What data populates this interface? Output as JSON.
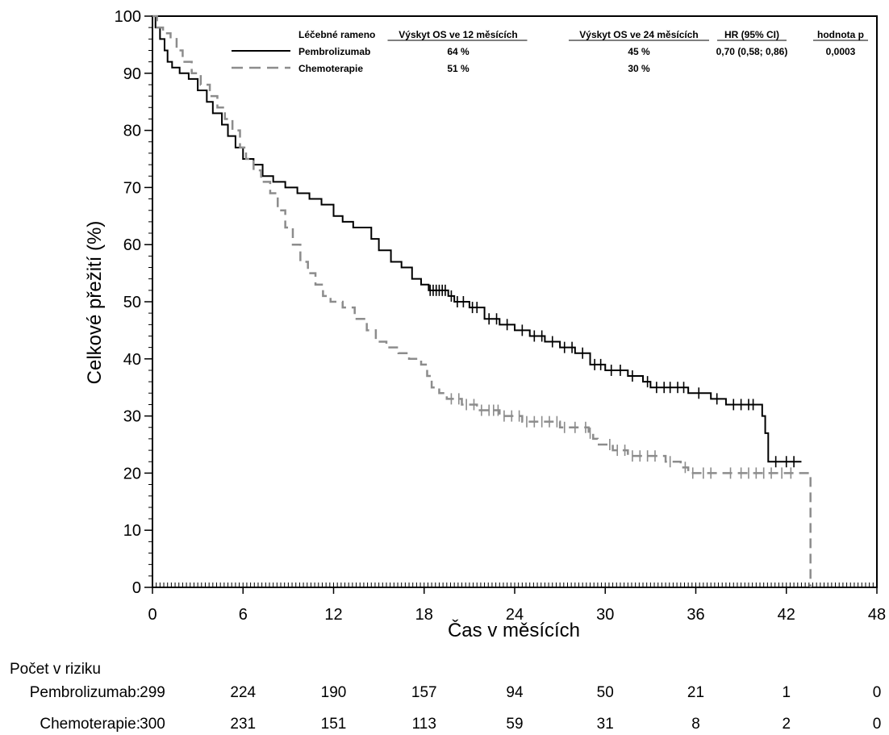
{
  "chart_data": {
    "type": "line",
    "subtype": "kaplan-meier",
    "xlabel": "Čas v měsících",
    "ylabel": "Celkové přežití (%)",
    "xlim": [
      0,
      48
    ],
    "ylim": [
      0,
      100
    ],
    "x_ticks": [
      "0",
      "6",
      "12",
      "18",
      "24",
      "30",
      "36",
      "42",
      "48"
    ],
    "y_ticks": [
      "0",
      "10",
      "20",
      "30",
      "40",
      "50",
      "60",
      "70",
      "80",
      "90",
      "100"
    ],
    "grid": false,
    "legend": {
      "placement": "top",
      "header": {
        "arm": "Léčebné rameno",
        "os12": "Výskyt OS ve 12 měsících",
        "os24": "Výskyt OS ve 24 měsících",
        "hr": "HR (95% CI)",
        "p": "hodnota p"
      },
      "rows": [
        {
          "arm": "Pembrolizumab",
          "os12": "64 %",
          "os24": "45 %",
          "hr": "0,70 (0,58; 0,86)",
          "p": "0,0003"
        },
        {
          "arm": "Chemoterapie",
          "os12": "51 %",
          "os24": "30 %",
          "hr": "",
          "p": ""
        }
      ]
    },
    "series": [
      {
        "name": "Pembrolizumab",
        "color": "#000000",
        "style": "solid",
        "points": [
          [
            0,
            100
          ],
          [
            0.2,
            98
          ],
          [
            0.5,
            96
          ],
          [
            0.8,
            94
          ],
          [
            1.0,
            92
          ],
          [
            1.3,
            91
          ],
          [
            1.8,
            90
          ],
          [
            2.4,
            89
          ],
          [
            3.0,
            87
          ],
          [
            3.6,
            85
          ],
          [
            4.0,
            83
          ],
          [
            4.6,
            81
          ],
          [
            5.0,
            79
          ],
          [
            5.5,
            77
          ],
          [
            6.0,
            75
          ],
          [
            6.7,
            74
          ],
          [
            7.3,
            72
          ],
          [
            8.0,
            71
          ],
          [
            8.8,
            70
          ],
          [
            9.6,
            69
          ],
          [
            10.4,
            68
          ],
          [
            11.2,
            67
          ],
          [
            12.0,
            65
          ],
          [
            12.6,
            64
          ],
          [
            13.3,
            63
          ],
          [
            14.0,
            63
          ],
          [
            14.5,
            61
          ],
          [
            15.0,
            59
          ],
          [
            15.8,
            57
          ],
          [
            16.5,
            56
          ],
          [
            17.2,
            54
          ],
          [
            17.8,
            53
          ],
          [
            18.3,
            52
          ],
          [
            19.3,
            52
          ],
          [
            19.6,
            51
          ],
          [
            20.0,
            50
          ],
          [
            21.0,
            49
          ],
          [
            22.0,
            47
          ],
          [
            23.0,
            46
          ],
          [
            24.0,
            45
          ],
          [
            25.0,
            44
          ],
          [
            26.0,
            43
          ],
          [
            27.0,
            42
          ],
          [
            28.0,
            41
          ],
          [
            29.0,
            39
          ],
          [
            30.0,
            38
          ],
          [
            31.5,
            37
          ],
          [
            32.5,
            36
          ],
          [
            33.0,
            35
          ],
          [
            35.0,
            35
          ],
          [
            35.5,
            34
          ],
          [
            36.5,
            34
          ],
          [
            37.0,
            33
          ],
          [
            38.0,
            32
          ],
          [
            40.0,
            32
          ],
          [
            40.4,
            30
          ],
          [
            40.6,
            27
          ],
          [
            40.8,
            22
          ],
          [
            43.0,
            22
          ]
        ],
        "censor_x": [
          18.4,
          18.6,
          18.8,
          19.0,
          19.2,
          19.4,
          19.8,
          20.2,
          20.6,
          21.2,
          21.5,
          22.3,
          22.8,
          23.5,
          24.5,
          25.3,
          25.8,
          26.5,
          27.3,
          27.8,
          28.5,
          29.3,
          29.7,
          30.4,
          31.0,
          31.8,
          32.8,
          33.4,
          33.9,
          34.3,
          34.8,
          35.2,
          36.2,
          37.4,
          38.5,
          39.0,
          39.5,
          39.8,
          41.3,
          42.0,
          42.5
        ]
      },
      {
        "name": "Chemoterapie",
        "color": "#8c8c8c",
        "style": "dashed",
        "points": [
          [
            0,
            100
          ],
          [
            0.3,
            98
          ],
          [
            0.7,
            97
          ],
          [
            1.2,
            96
          ],
          [
            1.6,
            94
          ],
          [
            2.0,
            92
          ],
          [
            2.6,
            90
          ],
          [
            3.2,
            88
          ],
          [
            3.8,
            86
          ],
          [
            4.3,
            84
          ],
          [
            4.8,
            82
          ],
          [
            5.3,
            80
          ],
          [
            5.8,
            77
          ],
          [
            6.2,
            75
          ],
          [
            6.7,
            73
          ],
          [
            7.2,
            71
          ],
          [
            7.8,
            69
          ],
          [
            8.3,
            66
          ],
          [
            8.8,
            63
          ],
          [
            9.3,
            60
          ],
          [
            9.8,
            57
          ],
          [
            10.3,
            55
          ],
          [
            10.8,
            53
          ],
          [
            11.3,
            51
          ],
          [
            11.8,
            50
          ],
          [
            12.6,
            49
          ],
          [
            13.4,
            47
          ],
          [
            14.2,
            45
          ],
          [
            14.8,
            43
          ],
          [
            15.5,
            42
          ],
          [
            16.3,
            41
          ],
          [
            17.0,
            40
          ],
          [
            17.8,
            39
          ],
          [
            18.2,
            37
          ],
          [
            18.5,
            35
          ],
          [
            19.0,
            34
          ],
          [
            19.5,
            33
          ],
          [
            20.5,
            32
          ],
          [
            21.5,
            31
          ],
          [
            23.0,
            30
          ],
          [
            24.5,
            29
          ],
          [
            26.0,
            29
          ],
          [
            27.0,
            28
          ],
          [
            28.5,
            28
          ],
          [
            28.9,
            27
          ],
          [
            29.2,
            26
          ],
          [
            29.5,
            25
          ],
          [
            30.5,
            24
          ],
          [
            31.5,
            23
          ],
          [
            33.0,
            23
          ],
          [
            34.0,
            22
          ],
          [
            35.0,
            21
          ],
          [
            35.5,
            20
          ],
          [
            43.5,
            20
          ],
          [
            43.6,
            0
          ]
        ],
        "censor_x": [
          19.8,
          20.3,
          20.8,
          21.3,
          21.8,
          22.3,
          22.6,
          22.9,
          23.3,
          23.8,
          24.3,
          24.8,
          25.3,
          25.8,
          26.3,
          26.8,
          27.3,
          28.0,
          28.7,
          29.0,
          30.3,
          30.8,
          31.3,
          31.8,
          32.3,
          32.8,
          33.3,
          34.3,
          35.3,
          35.8,
          36.5,
          37.0,
          38.3,
          39.0,
          39.5,
          40.0,
          40.5,
          41.0,
          41.7,
          42.3
        ]
      }
    ],
    "risk_table": {
      "title": "Počet v riziku",
      "times": [
        0,
        6,
        12,
        18,
        24,
        30,
        36,
        42,
        48
      ],
      "rows": [
        {
          "label": "Pembrolizumab:",
          "values": [
            "299",
            "224",
            "190",
            "157",
            "94",
            "50",
            "21",
            "1",
            "0"
          ]
        },
        {
          "label": "Chemoterapie:",
          "values": [
            "300",
            "231",
            "151",
            "113",
            "59",
            "31",
            "8",
            "2",
            "0"
          ]
        }
      ]
    }
  }
}
